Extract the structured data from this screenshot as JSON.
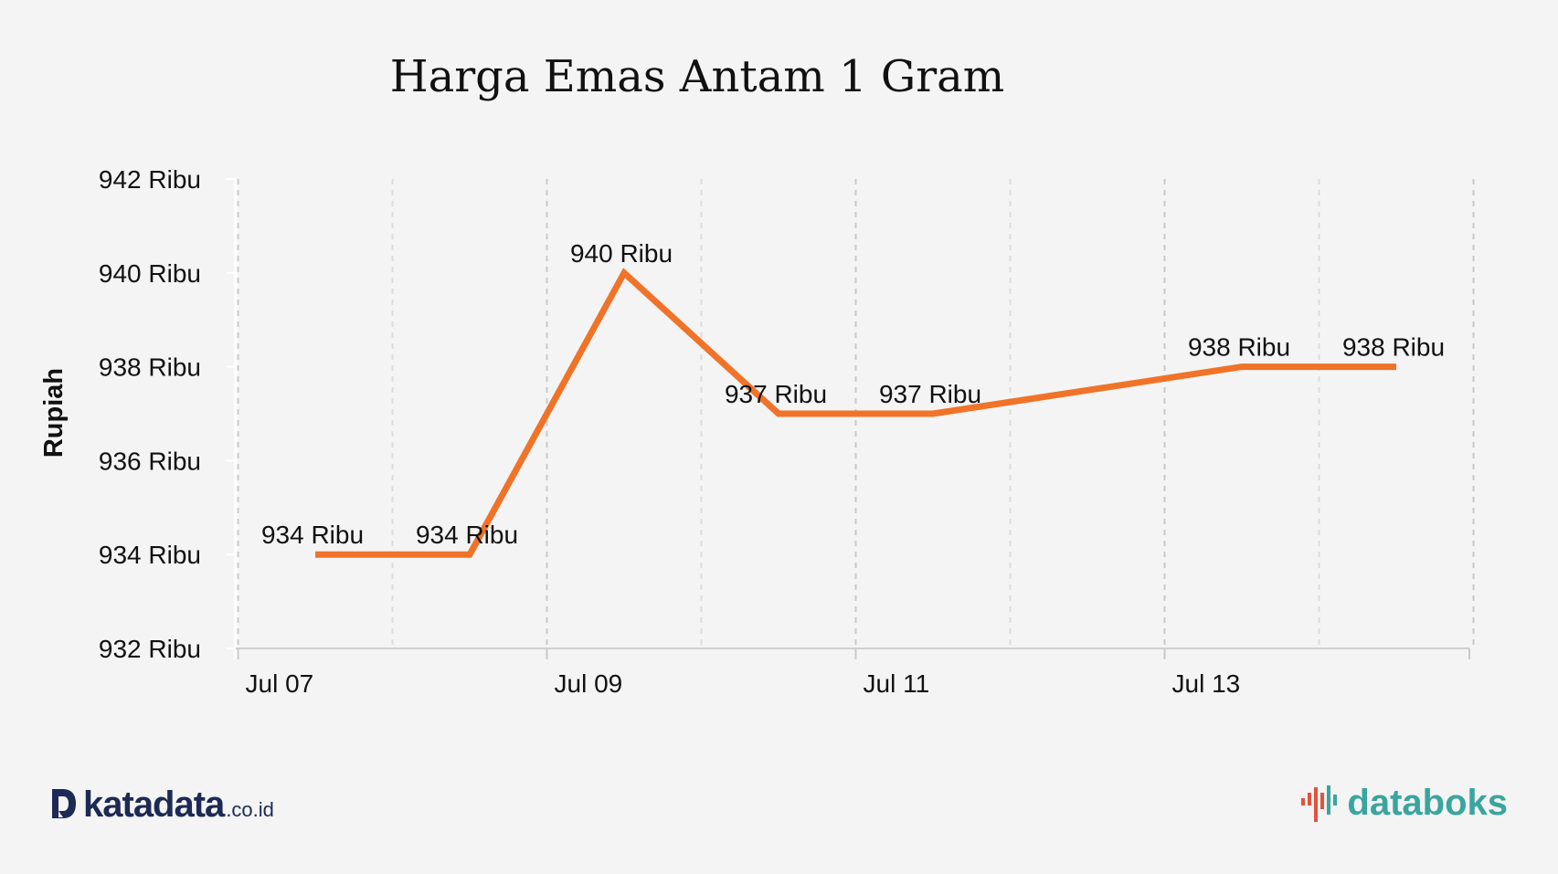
{
  "chart_data": {
    "type": "line",
    "title": "Harga Emas Antam 1 Gram",
    "xlabel": "",
    "ylabel": "Rupiah",
    "x": [
      "2023-07-07",
      "2023-07-08",
      "2023-07-09",
      "2023-07-10",
      "2023-07-11",
      "2023-07-12",
      "2023-07-13",
      "2023-07-14"
    ],
    "x_tick_labels": [
      "Jul 07",
      "Jul 09",
      "Jul 11",
      "Jul 13"
    ],
    "y_tick_labels": [
      "932 Ribu",
      "934 Ribu",
      "936 Ribu",
      "938 Ribu",
      "940 Ribu",
      "942 Ribu"
    ],
    "y_ticks": [
      932000,
      934000,
      936000,
      938000,
      940000,
      942000
    ],
    "ylim": [
      932000,
      942000
    ],
    "grid": "vertical dashed",
    "series": [
      {
        "name": "",
        "color": "#f07328",
        "values": [
          934000,
          934000,
          940000,
          937000,
          937000,
          937500,
          938000,
          938000
        ],
        "data_labels": [
          "934 Ribu",
          "934 Ribu",
          "940 Ribu",
          "937 Ribu",
          "937 Ribu",
          "",
          "938 Ribu",
          "938 Ribu"
        ]
      }
    ]
  },
  "branding": {
    "katadata_word": "katadata",
    "katadata_domain": ".co.id",
    "databoks_word": "databoks",
    "katadata_color": "#1d2a55",
    "databoks_color": "#3aa59f",
    "databoks_accent": "#e0533d"
  }
}
